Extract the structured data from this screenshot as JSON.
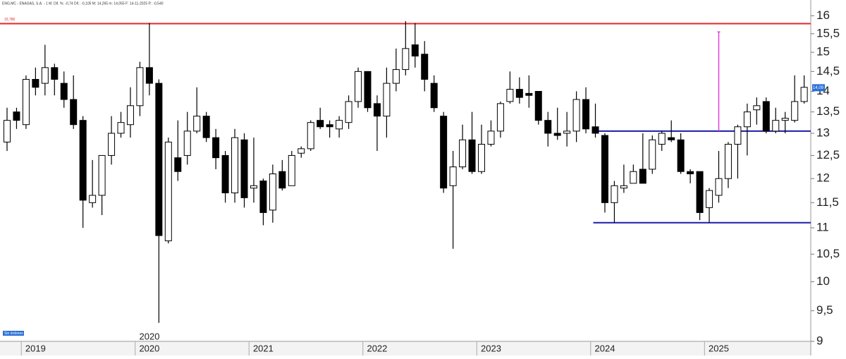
{
  "chart_data": {
    "type": "candlestick",
    "header": "ENG.MC - ENAGAS, S.A. - 1 M. Dif. %: -0,74 Dif.: -0,105 M: 14,265 m: 14,055 F: 14-11-2025 P.: -0,540",
    "status_label": "Sin órdenes",
    "annotations": [
      "2020"
    ],
    "categories": [
      null,
      null,
      "2019",
      null,
      null,
      null,
      null,
      null,
      null,
      null,
      null,
      null,
      null,
      null,
      "2020",
      null,
      null,
      null,
      null,
      null,
      null,
      null,
      null,
      null,
      null,
      null,
      "2021",
      null,
      null,
      null,
      null,
      null,
      null,
      null,
      null,
      null,
      null,
      null,
      "2022",
      null,
      null,
      null,
      null,
      null,
      null,
      null,
      null,
      null,
      null,
      null,
      "2023",
      null,
      null,
      null,
      null,
      null,
      null,
      null,
      null,
      null,
      null,
      null,
      "2024",
      null,
      null,
      null,
      null,
      null,
      null,
      null,
      null,
      null,
      null,
      null,
      "2025",
      null,
      null,
      null,
      null,
      null,
      null,
      null,
      null,
      null,
      null
    ],
    "open": [
      12.8,
      13.5,
      13.2,
      14.3,
      14.2,
      14.6,
      14.2,
      13.8,
      13.3,
      11.5,
      11.65,
      12.5,
      13.0,
      13.2,
      13.65,
      14.6,
      14.2,
      10.75,
      12.45,
      12.5,
      13.05,
      13.4,
      12.9,
      12.5,
      11.7,
      12.85,
      11.8,
      11.95,
      11.35,
      12.15,
      11.85,
      12.55,
      12.65,
      13.3,
      13.2,
      13.1,
      13.25,
      13.75,
      14.5,
      13.7,
      13.4,
      14.2,
      14.55,
      15.2,
      14.95,
      14.2,
      13.4,
      11.85,
      12.25,
      12.85,
      12.15,
      12.75,
      13.05,
      13.75,
      14.05,
      13.95,
      14.0,
      13.3,
      13.0,
      13.0,
      13.05,
      13.8,
      13.15,
      12.95,
      11.5,
      11.8,
      11.9,
      12.2,
      12.2,
      12.75,
      12.9,
      12.85,
      12.15,
      12.15,
      11.4,
      11.65,
      12.0,
      12.75,
      13.15,
      13.55,
      13.75,
      13.05,
      13.3,
      13.3,
      13.75
    ],
    "high": [
      13.6,
      13.6,
      14.4,
      14.6,
      15.2,
      14.7,
      14.5,
      14.4,
      13.4,
      12.4,
      12.5,
      13.4,
      13.5,
      14.1,
      14.75,
      15.8,
      14.3,
      12.9,
      13.3,
      13.5,
      14.1,
      13.5,
      13.1,
      12.6,
      13.1,
      13.0,
      12.9,
      12.0,
      12.3,
      12.4,
      12.6,
      12.7,
      13.3,
      13.6,
      13.3,
      13.4,
      13.9,
      14.6,
      14.5,
      13.9,
      14.6,
      15.1,
      15.85,
      15.8,
      15.3,
      14.4,
      13.5,
      12.6,
      13.2,
      13.5,
      13.2,
      13.3,
      13.75,
      14.5,
      14.35,
      14.4,
      14.0,
      13.5,
      13.6,
      13.5,
      14.0,
      14.1,
      13.7,
      13.0,
      11.95,
      12.3,
      12.3,
      13.0,
      12.95,
      13.05,
      13.3,
      13.0,
      12.2,
      12.15,
      11.8,
      12.6,
      12.8,
      13.2,
      13.7,
      13.85,
      13.85,
      13.6,
      13.5,
      14.4,
      14.4
    ],
    "low": [
      12.6,
      13.1,
      13.1,
      13.9,
      13.9,
      13.9,
      13.6,
      13.1,
      11.0,
      11.4,
      11.25,
      12.3,
      12.9,
      12.9,
      13.4,
      13.9,
      9.3,
      10.7,
      11.95,
      12.3,
      13.0,
      12.8,
      12.2,
      11.5,
      11.5,
      11.4,
      11.5,
      11.05,
      11.1,
      11.75,
      11.85,
      12.45,
      12.6,
      13.1,
      12.9,
      12.9,
      13.1,
      13.6,
      13.5,
      12.6,
      12.9,
      14.0,
      14.4,
      14.6,
      14.0,
      13.5,
      11.7,
      10.6,
      12.2,
      12.1,
      12.1,
      12.7,
      12.9,
      13.7,
      13.7,
      13.6,
      13.2,
      12.7,
      12.85,
      12.7,
      12.8,
      13.0,
      12.9,
      11.3,
      11.1,
      11.7,
      11.9,
      11.9,
      12.1,
      12.6,
      12.8,
      12.1,
      11.9,
      11.15,
      11.1,
      11.5,
      11.8,
      12.0,
      12.5,
      13.2,
      13.0,
      13.0,
      13.0,
      13.25,
      13.7
    ],
    "close": [
      13.3,
      13.3,
      14.3,
      14.1,
      14.6,
      14.3,
      13.8,
      13.2,
      11.55,
      11.65,
      12.5,
      13.0,
      13.25,
      13.65,
      14.6,
      14.2,
      10.85,
      12.8,
      12.15,
      13.05,
      13.4,
      12.9,
      12.45,
      11.7,
      12.9,
      11.6,
      11.85,
      11.3,
      12.1,
      11.8,
      12.5,
      12.65,
      13.25,
      13.15,
      13.15,
      13.3,
      13.75,
      14.5,
      13.6,
      13.4,
      14.2,
      14.55,
      15.1,
      14.9,
      14.3,
      13.6,
      11.8,
      12.25,
      12.85,
      12.15,
      12.75,
      13.05,
      13.7,
      14.05,
      13.85,
      13.9,
      13.3,
      13.0,
      12.95,
      13.05,
      13.8,
      13.1,
      13.0,
      11.5,
      11.85,
      11.85,
      12.15,
      11.9,
      12.85,
      13.0,
      12.85,
      12.15,
      12.1,
      11.3,
      11.75,
      12.0,
      12.75,
      13.15,
      13.5,
      13.65,
      13.05,
      13.3,
      13.35,
      13.75,
      14.1
    ],
    "up_color": "#ffffff",
    "down_color": "#000000",
    "log_scale": true,
    "ylim": [
      9,
      16.35
    ],
    "yticks": [
      9,
      {
        "value": 9.5,
        "label": "9,5"
      },
      10,
      {
        "value": 10.5,
        "label": "10,5"
      },
      11,
      {
        "value": 11.5,
        "label": "11,5"
      },
      12,
      {
        "value": 12.5,
        "label": "12,5"
      },
      13,
      {
        "value": 13.5,
        "label": "13,5"
      },
      14,
      {
        "value": 14.5,
        "label": "14,5"
      },
      15,
      {
        "value": 15.5,
        "label": "15,5"
      },
      16
    ],
    "hlines": [
      {
        "value": 15.78,
        "label": "15,780",
        "color": "#e8262a"
      },
      {
        "value": 13.05,
        "color": "#1c1ca8"
      },
      {
        "value": 11.1,
        "color": "#1c1ca8"
      }
    ],
    "vline": {
      "low": 13.05,
      "high": 15.55,
      "color": "#e040e0"
    },
    "last_price": {
      "value": 14.09,
      "label": "14,09"
    }
  }
}
